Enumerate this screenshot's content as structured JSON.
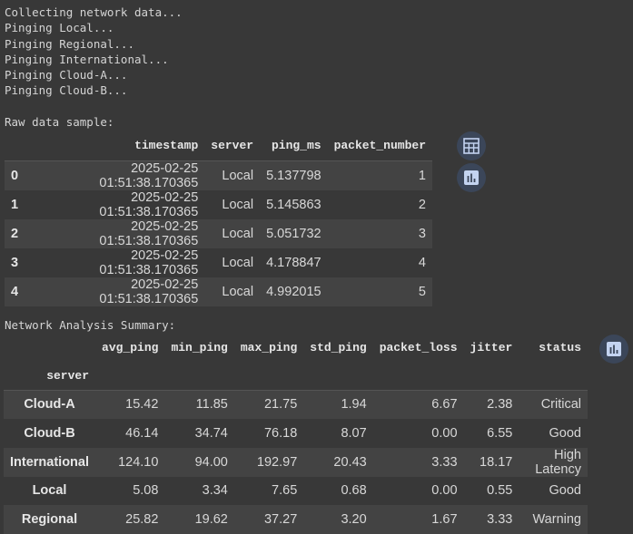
{
  "log_lines": [
    "Collecting network data...",
    "Pinging Local...",
    "Pinging Regional...",
    "Pinging International...",
    "Pinging Cloud-A...",
    "Pinging Cloud-B..."
  ],
  "raw": {
    "title": "Raw data sample:",
    "columns": [
      "",
      "timestamp",
      "server",
      "ping_ms",
      "packet_number"
    ],
    "rows": [
      [
        "0",
        "2025-02-25 01:51:38.170365",
        "Local",
        "5.137798",
        "1"
      ],
      [
        "1",
        "2025-02-25 01:51:38.170365",
        "Local",
        "5.145863",
        "2"
      ],
      [
        "2",
        "2025-02-25 01:51:38.170365",
        "Local",
        "5.051732",
        "3"
      ],
      [
        "3",
        "2025-02-25 01:51:38.170365",
        "Local",
        "4.178847",
        "4"
      ],
      [
        "4",
        "2025-02-25 01:51:38.170365",
        "Local",
        "4.992015",
        "5"
      ]
    ]
  },
  "summary": {
    "title": "Network Analysis Summary:",
    "columns": [
      "avg_ping",
      "min_ping",
      "max_ping",
      "std_ping",
      "packet_loss",
      "jitter",
      "status"
    ],
    "index_name": "server",
    "rows": [
      [
        "Cloud-A",
        "15.42",
        "11.85",
        "21.75",
        "1.94",
        "6.67",
        "2.38",
        "Critical"
      ],
      [
        "Cloud-B",
        "46.14",
        "34.74",
        "76.18",
        "8.07",
        "0.00",
        "6.55",
        "Good"
      ],
      [
        "International",
        "124.10",
        "94.00",
        "192.97",
        "20.43",
        "3.33",
        "18.17",
        "High Latency"
      ],
      [
        "Local",
        "5.08",
        "3.34",
        "7.65",
        "0.68",
        "0.00",
        "0.55",
        "Good"
      ],
      [
        "Regional",
        "25.82",
        "19.62",
        "37.27",
        "3.20",
        "1.67",
        "3.33",
        "Warning"
      ]
    ]
  },
  "icons": {
    "table": "table-icon",
    "chart": "bar-chart-icon"
  },
  "colors": {
    "background": "#383838",
    "row_alt": "#434343",
    "button": "#3b4659",
    "icon": "#c3d3f0"
  }
}
